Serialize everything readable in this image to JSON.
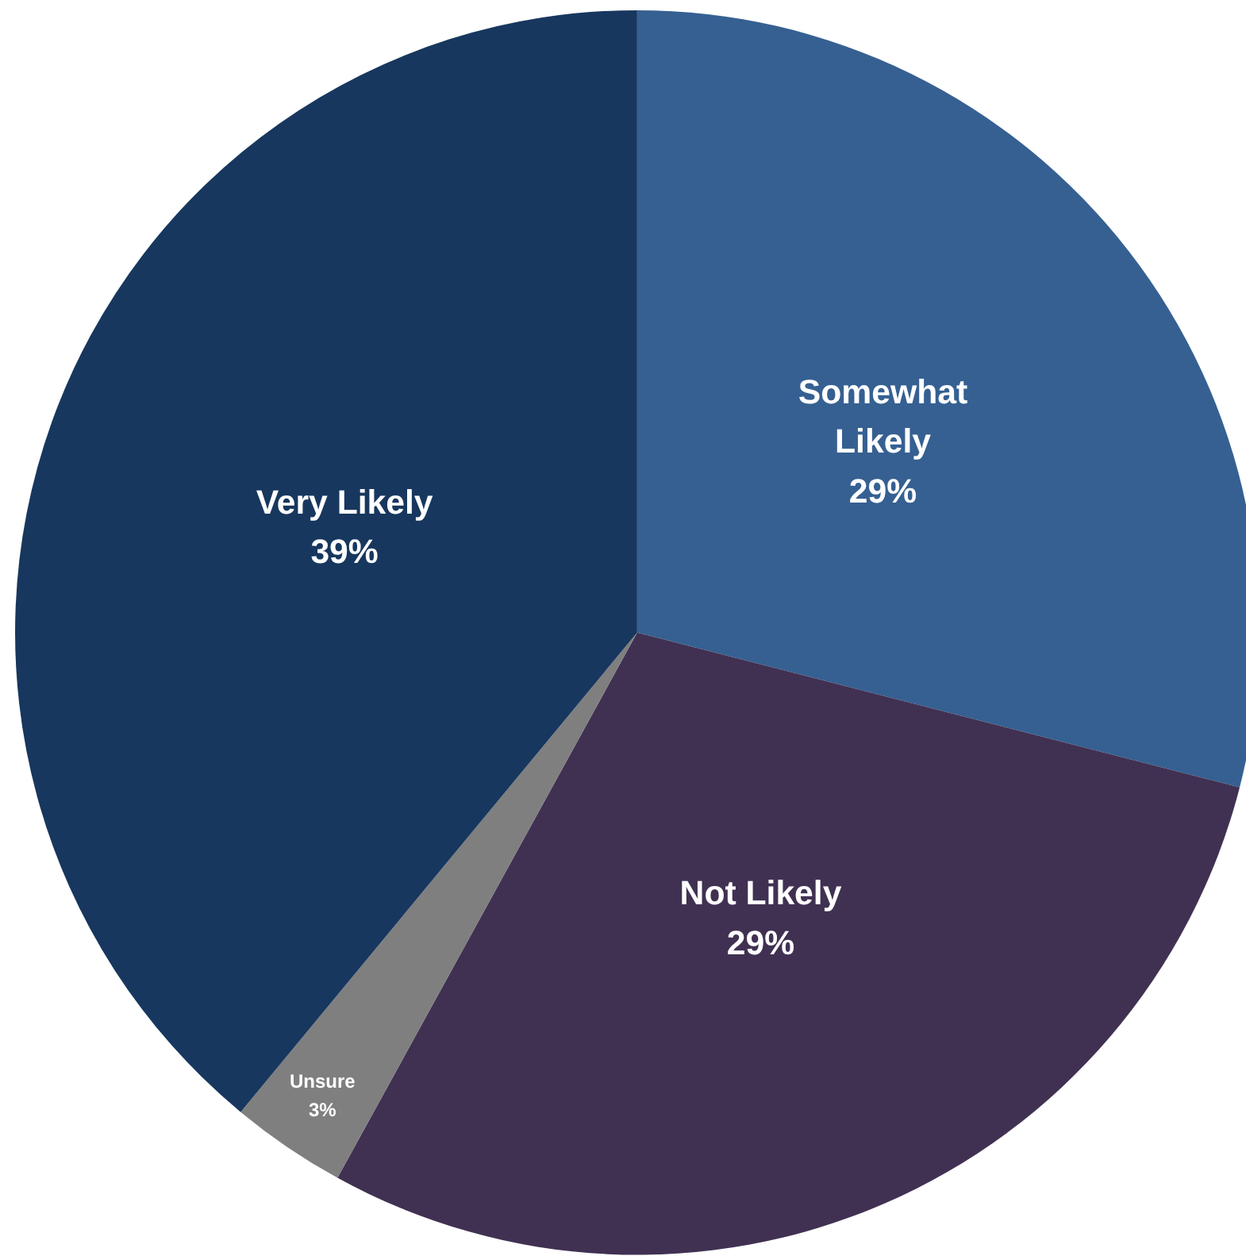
{
  "chart_data": {
    "type": "pie",
    "categories": [
      "Somewhat Likely",
      "Not Likely",
      "Unsure",
      "Very Likely"
    ],
    "values": [
      29,
      29,
      3,
      39
    ],
    "colors": [
      "#366092",
      "#403152",
      "#7f7f7f",
      "#17375e"
    ],
    "value_labels": [
      "29%",
      "29%",
      "3%",
      "39%"
    ]
  }
}
